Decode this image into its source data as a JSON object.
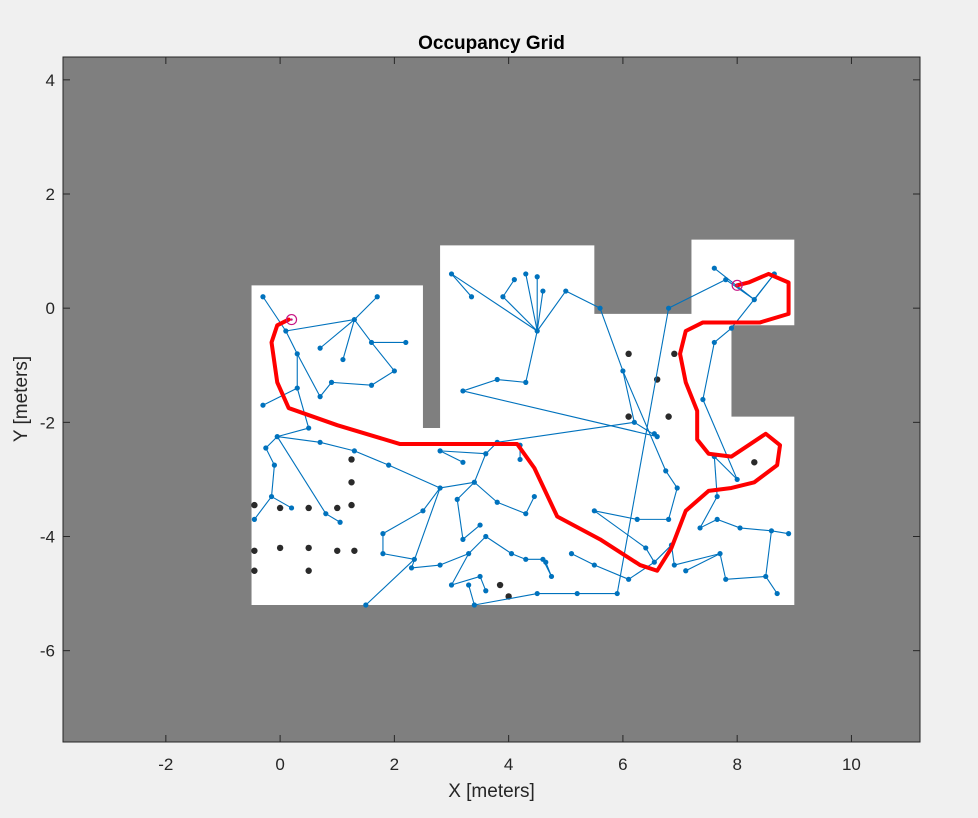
{
  "chart_data": {
    "type": "scatter",
    "title": "Occupancy Grid",
    "xlabel": "X [meters]",
    "ylabel": "Y [meters]",
    "xlim": [
      -3.8,
      11.2
    ],
    "ylim": [
      -7.6,
      4.4
    ],
    "xticks": [
      -2,
      0,
      2,
      4,
      6,
      8,
      10
    ],
    "xtick_labels": [
      "-2",
      "0",
      "2",
      "4",
      "6",
      "8",
      "10"
    ],
    "yticks": [
      4,
      2,
      0,
      -2,
      -4,
      -6
    ],
    "ytick_labels": [
      "4",
      "2",
      "0",
      "-2",
      "-4",
      "-6"
    ],
    "grid": false,
    "legend": "none",
    "colors": {
      "figure_bg": "#f0f0f0",
      "unknown_space": "#7f7f7f",
      "free_space": "#ffffff",
      "obstacle": "#2a2a2a",
      "tree": "#0072bd",
      "path": "#ff0000",
      "markers": "#c71585"
    },
    "map_free_regions": [
      [
        [
          -0.5,
          0.4
        ],
        [
          2.5,
          0.4
        ],
        [
          2.5,
          -2.1
        ],
        [
          2.8,
          -2.1
        ],
        [
          2.8,
          1.1
        ],
        [
          5.5,
          1.1
        ],
        [
          5.5,
          -0.1
        ],
        [
          7.2,
          -0.1
        ],
        [
          7.2,
          1.2
        ],
        [
          9.0,
          1.2
        ],
        [
          9.0,
          -0.3
        ],
        [
          7.9,
          -0.3
        ],
        [
          7.9,
          -1.9
        ],
        [
          9.0,
          -1.9
        ],
        [
          9.0,
          -5.2
        ],
        [
          -0.5,
          -5.2
        ]
      ]
    ],
    "obstacles": [
      [
        -0.45,
        -3.45
      ],
      [
        0.0,
        -3.5
      ],
      [
        0.5,
        -3.5
      ],
      [
        1.0,
        -3.5
      ],
      [
        1.25,
        -3.45
      ],
      [
        1.25,
        -3.05
      ],
      [
        1.25,
        -2.65
      ],
      [
        -0.45,
        -4.25
      ],
      [
        0.0,
        -4.2
      ],
      [
        0.5,
        -4.2
      ],
      [
        1.0,
        -4.25
      ],
      [
        1.3,
        -4.25
      ],
      [
        -0.45,
        -4.6
      ],
      [
        0.5,
        -4.6
      ],
      [
        6.1,
        -0.8
      ],
      [
        6.6,
        -1.25
      ],
      [
        6.1,
        -1.9
      ],
      [
        6.8,
        -1.9
      ],
      [
        6.9,
        -0.8
      ],
      [
        8.3,
        -2.7
      ],
      [
        3.85,
        -4.85
      ],
      [
        4.0,
        -5.05
      ]
    ],
    "tree_nodes": [
      [
        -0.3,
        0.2
      ],
      [
        0.1,
        -0.4
      ],
      [
        1.3,
        -0.2
      ],
      [
        0.7,
        -0.7
      ],
      [
        0.3,
        -0.8
      ],
      [
        1.1,
        -0.9
      ],
      [
        1.7,
        0.2
      ],
      [
        1.6,
        -0.6
      ],
      [
        2.2,
        -0.6
      ],
      [
        2.0,
        -1.1
      ],
      [
        1.6,
        -1.35
      ],
      [
        0.9,
        -1.3
      ],
      [
        0.7,
        -1.55
      ],
      [
        0.3,
        -1.4
      ],
      [
        -0.3,
        -1.7
      ],
      [
        0.5,
        -2.1
      ],
      [
        -0.05,
        -2.25
      ],
      [
        -0.25,
        -2.45
      ],
      [
        0.7,
        -2.35
      ],
      [
        1.3,
        -2.5
      ],
      [
        1.9,
        -2.75
      ],
      [
        -0.1,
        -2.75
      ],
      [
        -0.15,
        -3.3
      ],
      [
        -0.45,
        -3.7
      ],
      [
        0.2,
        -3.5
      ],
      [
        0.8,
        -3.6
      ],
      [
        1.05,
        -3.75
      ],
      [
        1.8,
        -3.95
      ],
      [
        1.8,
        -4.3
      ],
      [
        2.35,
        -4.4
      ],
      [
        1.5,
        -5.2
      ],
      [
        2.8,
        -3.15
      ],
      [
        2.5,
        -3.55
      ],
      [
        2.3,
        -4.55
      ],
      [
        2.8,
        -4.5
      ],
      [
        3.3,
        -4.3
      ],
      [
        3.0,
        -4.85
      ],
      [
        3.5,
        -4.7
      ],
      [
        3.6,
        -4.95
      ],
      [
        3.6,
        -4.0
      ],
      [
        4.05,
        -4.3
      ],
      [
        4.3,
        -4.4
      ],
      [
        4.6,
        -4.4
      ],
      [
        4.75,
        -4.7
      ],
      [
        4.65,
        -4.45
      ],
      [
        3.4,
        -3.05
      ],
      [
        3.1,
        -3.35
      ],
      [
        3.2,
        -4.05
      ],
      [
        3.5,
        -3.8
      ],
      [
        3.8,
        -3.4
      ],
      [
        4.3,
        -3.6
      ],
      [
        4.2,
        -2.65
      ],
      [
        3.6,
        -2.55
      ],
      [
        2.8,
        -2.5
      ],
      [
        3.2,
        -2.7
      ],
      [
        3.8,
        -2.35
      ],
      [
        4.45,
        -3.3
      ],
      [
        4.2,
        -2.4
      ],
      [
        3.0,
        0.6
      ],
      [
        3.35,
        0.2
      ],
      [
        3.2,
        -1.45
      ],
      [
        3.8,
        -1.25
      ],
      [
        4.3,
        -1.3
      ],
      [
        4.5,
        -0.4
      ],
      [
        3.9,
        0.2
      ],
      [
        4.1,
        0.5
      ],
      [
        4.3,
        0.6
      ],
      [
        4.5,
        0.55
      ],
      [
        4.6,
        0.3
      ],
      [
        5.0,
        0.3
      ],
      [
        5.6,
        0.0
      ],
      [
        6.0,
        -1.1
      ],
      [
        6.2,
        -2.0
      ],
      [
        6.6,
        -2.25
      ],
      [
        6.55,
        -2.2
      ],
      [
        6.75,
        -2.85
      ],
      [
        6.95,
        -3.15
      ],
      [
        6.8,
        -3.7
      ],
      [
        6.25,
        -3.7
      ],
      [
        5.5,
        -3.55
      ],
      [
        6.4,
        -4.2
      ],
      [
        6.55,
        -4.45
      ],
      [
        6.1,
        -4.75
      ],
      [
        5.5,
        -4.5
      ],
      [
        5.1,
        -4.3
      ],
      [
        6.85,
        -4.15
      ],
      [
        6.9,
        -4.5
      ],
      [
        7.7,
        -4.3
      ],
      [
        7.1,
        -4.6
      ],
      [
        7.8,
        -4.75
      ],
      [
        8.5,
        -4.7
      ],
      [
        8.7,
        -5.0
      ],
      [
        8.6,
        -3.9
      ],
      [
        8.9,
        -3.95
      ],
      [
        8.05,
        -3.85
      ],
      [
        7.65,
        -3.7
      ],
      [
        7.35,
        -3.85
      ],
      [
        7.65,
        -3.3
      ],
      [
        7.6,
        -2.6
      ],
      [
        8.0,
        -3.0
      ],
      [
        7.4,
        -1.6
      ],
      [
        7.6,
        -0.6
      ],
      [
        7.9,
        -0.35
      ],
      [
        8.65,
        0.6
      ],
      [
        8.3,
        0.15
      ],
      [
        7.8,
        0.5
      ],
      [
        7.6,
        0.7
      ],
      [
        6.8,
        0.0
      ],
      [
        5.9,
        -5.0
      ],
      [
        5.2,
        -5.0
      ],
      [
        4.5,
        -5.0
      ],
      [
        3.4,
        -5.2
      ],
      [
        3.3,
        -4.85
      ]
    ],
    "tree_edges": [
      [
        0,
        1
      ],
      [
        1,
        2
      ],
      [
        1,
        4
      ],
      [
        2,
        3
      ],
      [
        2,
        5
      ],
      [
        2,
        6
      ],
      [
        2,
        7
      ],
      [
        7,
        8
      ],
      [
        7,
        9
      ],
      [
        9,
        10
      ],
      [
        10,
        11
      ],
      [
        11,
        12
      ],
      [
        12,
        4
      ],
      [
        4,
        13
      ],
      [
        13,
        14
      ],
      [
        13,
        15
      ],
      [
        15,
        16
      ],
      [
        16,
        17
      ],
      [
        16,
        18
      ],
      [
        18,
        19
      ],
      [
        19,
        20
      ],
      [
        17,
        21
      ],
      [
        21,
        22
      ],
      [
        22,
        23
      ],
      [
        22,
        24
      ],
      [
        16,
        25
      ],
      [
        25,
        26
      ],
      [
        20,
        31
      ],
      [
        31,
        32
      ],
      [
        32,
        27
      ],
      [
        27,
        28
      ],
      [
        28,
        29
      ],
      [
        29,
        30
      ],
      [
        31,
        33
      ],
      [
        33,
        34
      ],
      [
        34,
        35
      ],
      [
        35,
        36
      ],
      [
        36,
        37
      ],
      [
        37,
        38
      ],
      [
        35,
        39
      ],
      [
        39,
        40
      ],
      [
        40,
        41
      ],
      [
        41,
        42
      ],
      [
        42,
        43
      ],
      [
        43,
        44
      ],
      [
        31,
        45
      ],
      [
        45,
        46
      ],
      [
        46,
        47
      ],
      [
        47,
        48
      ],
      [
        45,
        49
      ],
      [
        49,
        50
      ],
      [
        50,
        56
      ],
      [
        45,
        52
      ],
      [
        52,
        53
      ],
      [
        53,
        54
      ],
      [
        52,
        55
      ],
      [
        55,
        57
      ],
      [
        57,
        51
      ],
      [
        60,
        61
      ],
      [
        61,
        62
      ],
      [
        62,
        63
      ],
      [
        63,
        64
      ],
      [
        64,
        65
      ],
      [
        63,
        66
      ],
      [
        63,
        67
      ],
      [
        63,
        68
      ],
      [
        63,
        58
      ],
      [
        58,
        59
      ],
      [
        63,
        69
      ],
      [
        69,
        70
      ],
      [
        70,
        71
      ],
      [
        71,
        72
      ],
      [
        72,
        73
      ],
      [
        73,
        74
      ],
      [
        71,
        75
      ],
      [
        75,
        76
      ],
      [
        76,
        77
      ],
      [
        77,
        78
      ],
      [
        78,
        79
      ],
      [
        79,
        80
      ],
      [
        80,
        81
      ],
      [
        81,
        82
      ],
      [
        82,
        83
      ],
      [
        83,
        84
      ],
      [
        81,
        85
      ],
      [
        85,
        86
      ],
      [
        86,
        87
      ],
      [
        87,
        88
      ],
      [
        87,
        89
      ],
      [
        89,
        90
      ],
      [
        90,
        91
      ],
      [
        90,
        92
      ],
      [
        92,
        93
      ],
      [
        92,
        94
      ],
      [
        94,
        95
      ],
      [
        95,
        96
      ],
      [
        96,
        97
      ],
      [
        97,
        98
      ],
      [
        98,
        99
      ],
      [
        99,
        100
      ],
      [
        100,
        101
      ],
      [
        101,
        102
      ],
      [
        102,
        103
      ],
      [
        103,
        104
      ],
      [
        104,
        105
      ],
      [
        104,
        106
      ],
      [
        105,
        107
      ],
      [
        107,
        108
      ],
      [
        108,
        109
      ],
      [
        109,
        110
      ],
      [
        110,
        111
      ],
      [
        111,
        112
      ],
      [
        112,
        113
      ],
      [
        113,
        114
      ],
      [
        55,
        72
      ],
      [
        60,
        73
      ]
    ],
    "path": [
      [
        0.15,
        -0.2
      ],
      [
        -0.05,
        -0.3
      ],
      [
        -0.15,
        -0.6
      ],
      [
        -0.05,
        -1.3
      ],
      [
        0.15,
        -1.75
      ],
      [
        1.0,
        -2.05
      ],
      [
        2.1,
        -2.38
      ],
      [
        3.5,
        -2.38
      ],
      [
        4.15,
        -2.38
      ],
      [
        4.45,
        -2.8
      ],
      [
        4.85,
        -3.65
      ],
      [
        5.6,
        -4.05
      ],
      [
        6.3,
        -4.5
      ],
      [
        6.6,
        -4.6
      ],
      [
        6.85,
        -4.2
      ],
      [
        7.1,
        -3.55
      ],
      [
        7.5,
        -3.2
      ],
      [
        7.9,
        -3.15
      ],
      [
        8.3,
        -3.05
      ],
      [
        8.7,
        -2.75
      ],
      [
        8.75,
        -2.4
      ],
      [
        8.5,
        -2.2
      ],
      [
        8.2,
        -2.4
      ],
      [
        7.9,
        -2.6
      ],
      [
        7.5,
        -2.55
      ],
      [
        7.3,
        -2.3
      ],
      [
        7.3,
        -1.8
      ],
      [
        7.1,
        -1.3
      ],
      [
        7.0,
        -0.8
      ],
      [
        7.1,
        -0.4
      ],
      [
        7.4,
        -0.25
      ],
      [
        7.8,
        -0.25
      ],
      [
        8.4,
        -0.25
      ],
      [
        8.9,
        -0.1
      ],
      [
        8.9,
        0.45
      ],
      [
        8.55,
        0.6
      ],
      [
        8.2,
        0.45
      ],
      [
        8.0,
        0.4
      ]
    ],
    "start": [
      0.2,
      -0.2
    ],
    "goal": [
      8.0,
      0.4
    ]
  }
}
